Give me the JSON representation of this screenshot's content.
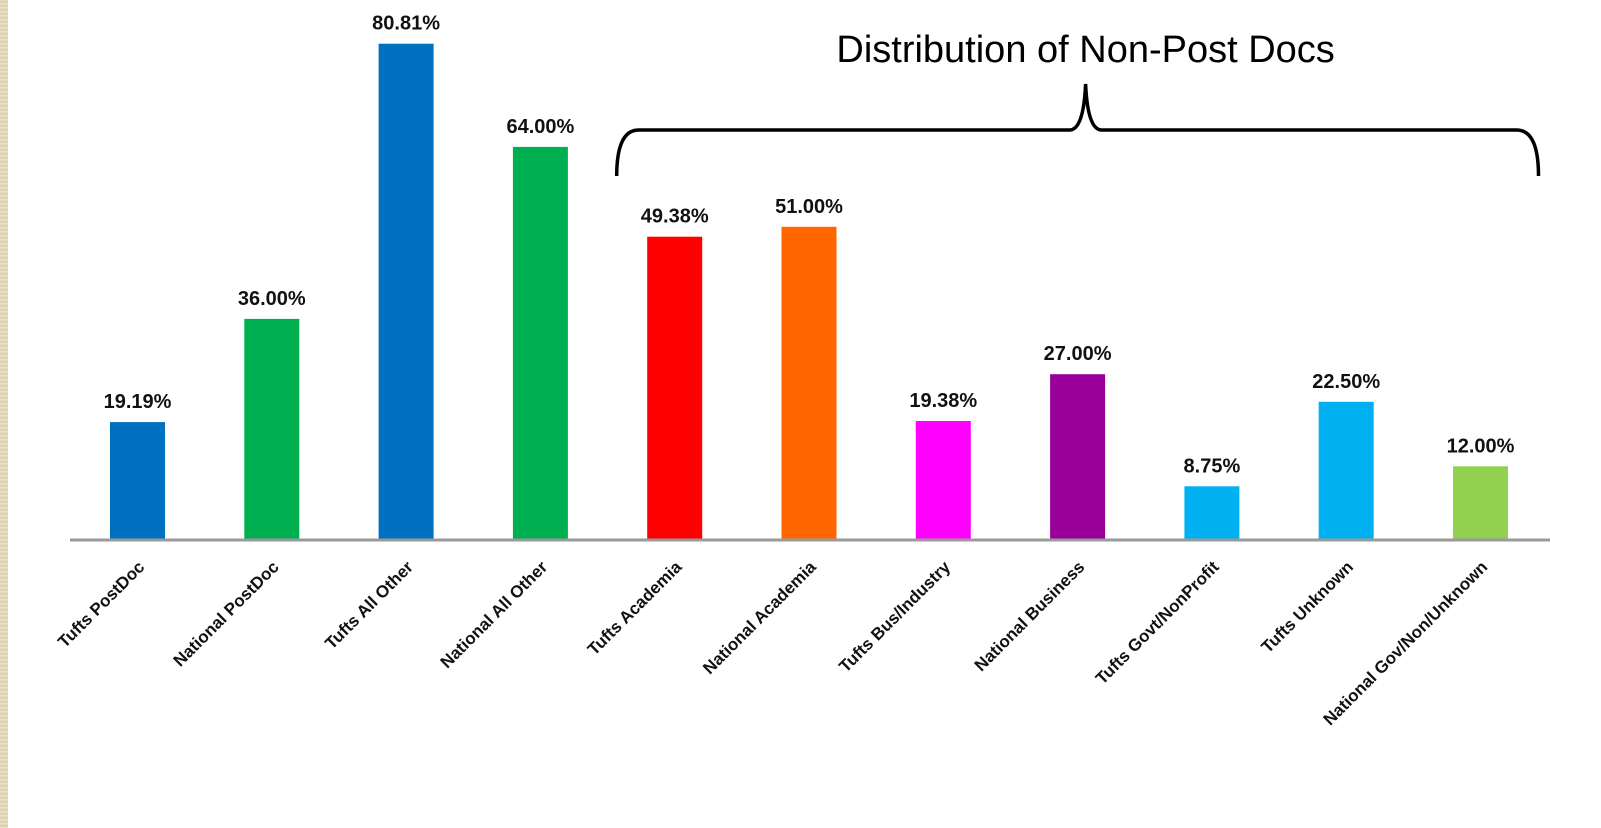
{
  "chart_data": {
    "type": "bar",
    "title": "",
    "xlabel": "",
    "ylabel": "",
    "ylim": [
      0,
      90
    ],
    "grid": false,
    "legend": "none",
    "categories": [
      "Tufts PostDoc",
      "National PostDoc",
      "Tufts All Other",
      "National All Other",
      "Tufts Academia",
      "National Academia",
      "Tufts Bus/Industry",
      "National Business",
      "Tufts Govt/NonProfit",
      "Tufts Unknown",
      "National Gov/Non/Unknown"
    ],
    "values": [
      19.19,
      36.0,
      80.81,
      64.0,
      49.38,
      51.0,
      19.38,
      27.0,
      8.75,
      22.5,
      12.0
    ],
    "data_labels": [
      "19.19%",
      "36.00%",
      "80.81%",
      "64.00%",
      "49.38%",
      "51.00%",
      "19.38%",
      "27.00%",
      "8.75%",
      "22.50%",
      "12.00%"
    ],
    "colors": [
      "#0070c0",
      "#00b050",
      "#0070c0",
      "#00b050",
      "#ff0000",
      "#ff6600",
      "#ff00ff",
      "#990099",
      "#00b0f0",
      "#00b0f0",
      "#92d050"
    ],
    "annotations": [
      {
        "text": "Distribution of Non-Post Docs",
        "bracket_over_categories": [
          4,
          10
        ]
      }
    ]
  }
}
